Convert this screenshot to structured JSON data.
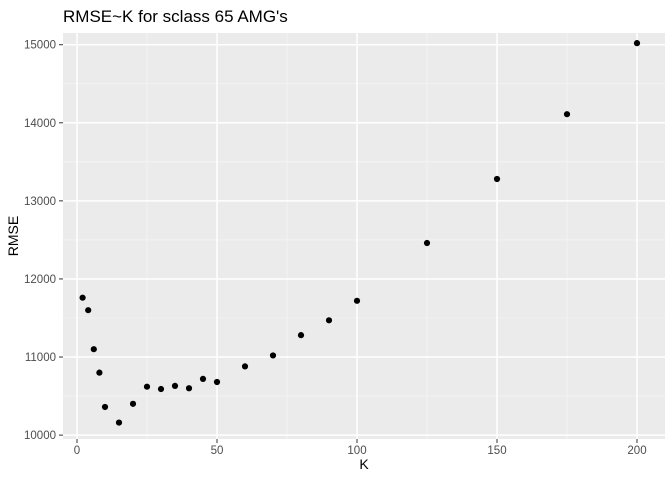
{
  "chart_data": {
    "type": "scatter",
    "title": "RMSE~K for sclass 65 AMG's",
    "xlabel": "K",
    "ylabel": "RMSE",
    "xlim": [
      -5,
      210
    ],
    "ylim": [
      9950,
      15150
    ],
    "x_ticks": [
      0,
      50,
      100,
      150,
      200
    ],
    "y_ticks": [
      10000,
      11000,
      12000,
      13000,
      14000,
      15000
    ],
    "x_tick_labels": [
      "0",
      "50",
      "100",
      "150",
      "200"
    ],
    "y_tick_labels": [
      "10000",
      "11000",
      "12000",
      "13000",
      "14000",
      "15000"
    ],
    "grid": true,
    "colors": {
      "panel": "#ebebeb",
      "grid_major": "#ffffff",
      "point": "#000000",
      "axis_text": "#4d4d4d",
      "title": "#000000"
    },
    "series": [
      {
        "x": [
          2,
          4,
          6,
          8,
          10,
          15,
          20,
          25,
          30,
          35,
          40,
          45,
          50,
          60,
          70,
          80,
          90,
          100,
          125,
          150,
          175,
          200
        ],
        "y": [
          11760,
          11600,
          11100,
          10800,
          10360,
          10160,
          10400,
          10620,
          10590,
          10630,
          10600,
          10720,
          10680,
          10880,
          11020,
          11280,
          11470,
          11720,
          12460,
          13280,
          14110,
          15020
        ]
      }
    ]
  }
}
